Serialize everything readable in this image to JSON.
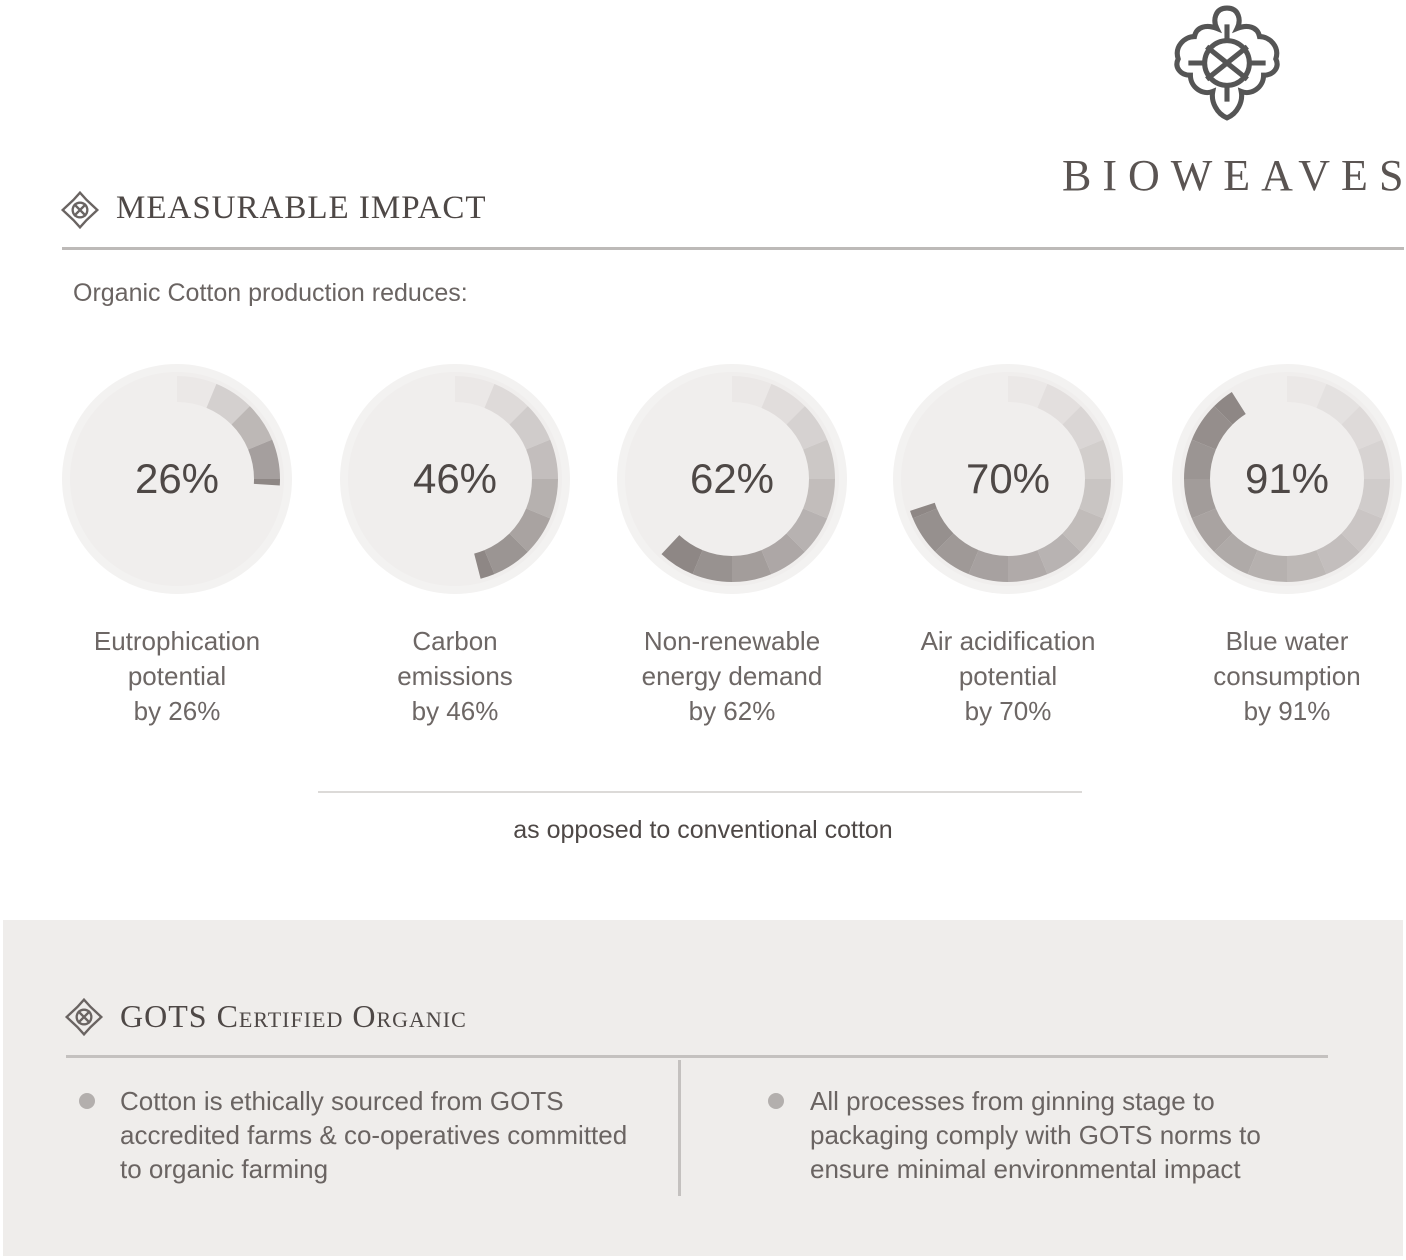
{
  "brand": {
    "name": "BIOWEAVES",
    "logo_icon": "celtic-knot-quatrefoil-icon"
  },
  "impact": {
    "heading": "MEASURABLE IMPACT",
    "intro": "Organic Cotton production reduces:",
    "note": "as opposed to conventional cotton",
    "colors": {
      "disc": "#f0eeed",
      "ring_light": "#ebe8e7",
      "ring_dark": "#8e8785",
      "text": "#4e4846"
    },
    "items": [
      {
        "value": 26,
        "display": "26%",
        "label_lines": [
          "Eutrophication",
          "potential",
          "by 26%"
        ]
      },
      {
        "value": 46,
        "display": "46%",
        "label_lines": [
          "Carbon",
          "emissions",
          "by 46%"
        ]
      },
      {
        "value": 62,
        "display": "62%",
        "label_lines": [
          "Non-renewable",
          "energy demand",
          "by 62%"
        ]
      },
      {
        "value": 70,
        "display": "70%",
        "label_lines": [
          "Air acidification",
          "potential",
          "by 70%"
        ]
      },
      {
        "value": 91,
        "display": "91%",
        "label_lines": [
          "Blue water",
          "consumption",
          "by 91%"
        ]
      }
    ]
  },
  "gots": {
    "heading": "GOTS Certified Organic",
    "points": [
      "Cotton is ethically sourced from GOTS accredited farms & co-operatives committed to organic farming",
      "All processes from ginning stage to packaging comply with GOTS norms to ensure minimal environmental impact"
    ]
  }
}
